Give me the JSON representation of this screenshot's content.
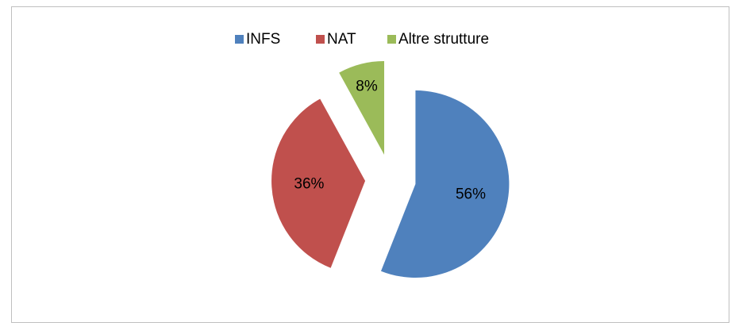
{
  "chart_data": {
    "type": "pie",
    "categories": [
      "INFS",
      "NAT",
      "Altre strutture"
    ],
    "values": [
      56,
      36,
      8
    ],
    "value_labels": [
      "56%",
      "36%",
      "8%"
    ],
    "colors": [
      "#4f81bd",
      "#c0504d",
      "#9bbb59"
    ],
    "exploded": true,
    "legend": "top"
  }
}
